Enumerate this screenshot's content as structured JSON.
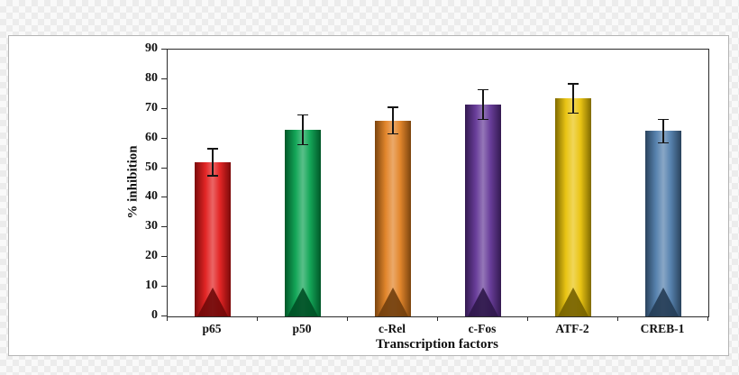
{
  "panel": {
    "background": "#ffffff",
    "border_color": "#b5b5b5"
  },
  "chart_data": {
    "type": "bar",
    "title": "",
    "xlabel": "Transcription factors",
    "ylabel": "% inhibition",
    "categories": [
      "p65",
      "p50",
      "c-Rel",
      "c-Fos",
      "ATF-2",
      "CREB-1"
    ],
    "values": [
      52,
      63,
      66,
      71.5,
      73.5,
      62.5
    ],
    "error_bars": [
      4.5,
      5,
      4.5,
      5,
      5,
      4
    ],
    "bar_colors": [
      "#e01212",
      "#009e49",
      "#e07b1a",
      "#5c2d91",
      "#e8c000",
      "#4a78a8"
    ],
    "axis_color": "#2b2b2b",
    "ylim": [
      0,
      90
    ],
    "yticks": [
      0,
      10,
      20,
      30,
      40,
      50,
      60,
      70,
      80,
      90
    ],
    "grid": "off",
    "legend": "none"
  }
}
